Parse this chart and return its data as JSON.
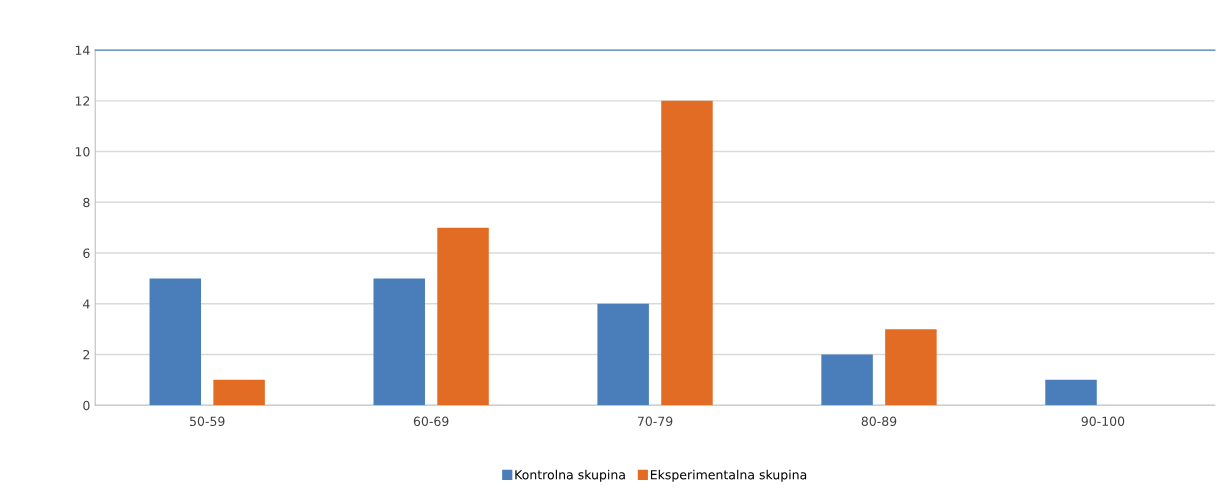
{
  "chart_data": {
    "type": "bar",
    "categories": [
      "50-59",
      "60-69",
      "70-79",
      "80-89",
      "90-100"
    ],
    "series": [
      {
        "name": "Kontrolna skupina",
        "color": "#4a7ebb",
        "values": [
          5,
          5,
          4,
          2,
          1
        ]
      },
      {
        "name": "Eksperimentalna skupina",
        "color": "#e36c25",
        "values": [
          1,
          7,
          12,
          3,
          0
        ]
      }
    ],
    "ylim": [
      0,
      14
    ],
    "yticks": [
      0,
      2,
      4,
      6,
      8,
      10,
      12,
      14
    ],
    "grid": "y",
    "legend": "bottom"
  }
}
